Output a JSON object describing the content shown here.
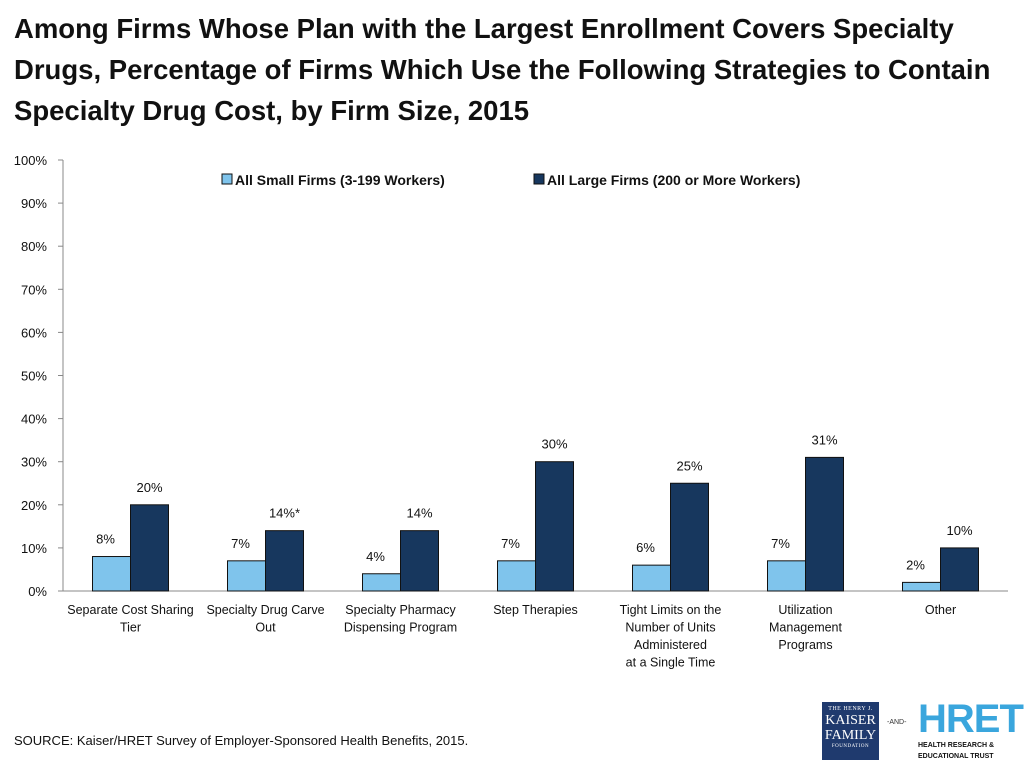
{
  "title": "Among Firms Whose Plan with the Largest Enrollment Covers Specialty Drugs, Percentage of Firms Which Use the Following Strategies to Contain Specialty Drug Cost, by Firm Size, 2015",
  "source": "SOURCE: Kaiser/HRET Survey of Employer-Sponsored Health Benefits, 2015.",
  "logos": {
    "kff": {
      "line1": "THE HENRY J.",
      "line2a": "KAISER",
      "line2b": "FAMILY",
      "line3": "FOUNDATION"
    },
    "and": "-AND-",
    "hret": {
      "big": "HRET",
      "small1": "HEALTH RESEARCH &",
      "small2": "EDUCATIONAL TRUST"
    }
  },
  "colors": {
    "small": "#7fc4ec",
    "large": "#17375e",
    "axis": "#888888"
  },
  "chart_data": {
    "type": "bar",
    "title": "Among Firms Whose Plan with the Largest Enrollment Covers Specialty Drugs, Percentage of Firms Which Use the Following Strategies to Contain Specialty Drug Cost, by Firm Size, 2015",
    "xlabel": "",
    "ylabel": "",
    "ylim": [
      0,
      100
    ],
    "yticks": [
      "0%",
      "10%",
      "20%",
      "30%",
      "40%",
      "50%",
      "60%",
      "70%",
      "80%",
      "90%",
      "100%"
    ],
    "legend_position": "top-center",
    "categories": [
      [
        "Separate Cost Sharing",
        "Tier"
      ],
      [
        "Specialty Drug Carve",
        "Out"
      ],
      [
        "Specialty Pharmacy",
        "Dispensing Program"
      ],
      [
        "Step Therapies"
      ],
      [
        "Tight Limits on the",
        "Number of Units",
        "Administered",
        "at a Single Time"
      ],
      [
        "Utilization",
        "Management",
        "Programs"
      ],
      [
        "Other"
      ]
    ],
    "series": [
      {
        "name": "All Small Firms (3-199 Workers)",
        "values": [
          8,
          7,
          4,
          7,
          6,
          7,
          2
        ],
        "labels": [
          "8%",
          "7%",
          "4%",
          "7%",
          "6%",
          "7%",
          "2%"
        ]
      },
      {
        "name": "All Large Firms (200 or More Workers)",
        "values": [
          20,
          14,
          14,
          30,
          25,
          31,
          10
        ],
        "labels": [
          "20%",
          "14%*",
          "14%",
          "30%",
          "25%",
          "31%",
          "10%"
        ]
      }
    ]
  }
}
